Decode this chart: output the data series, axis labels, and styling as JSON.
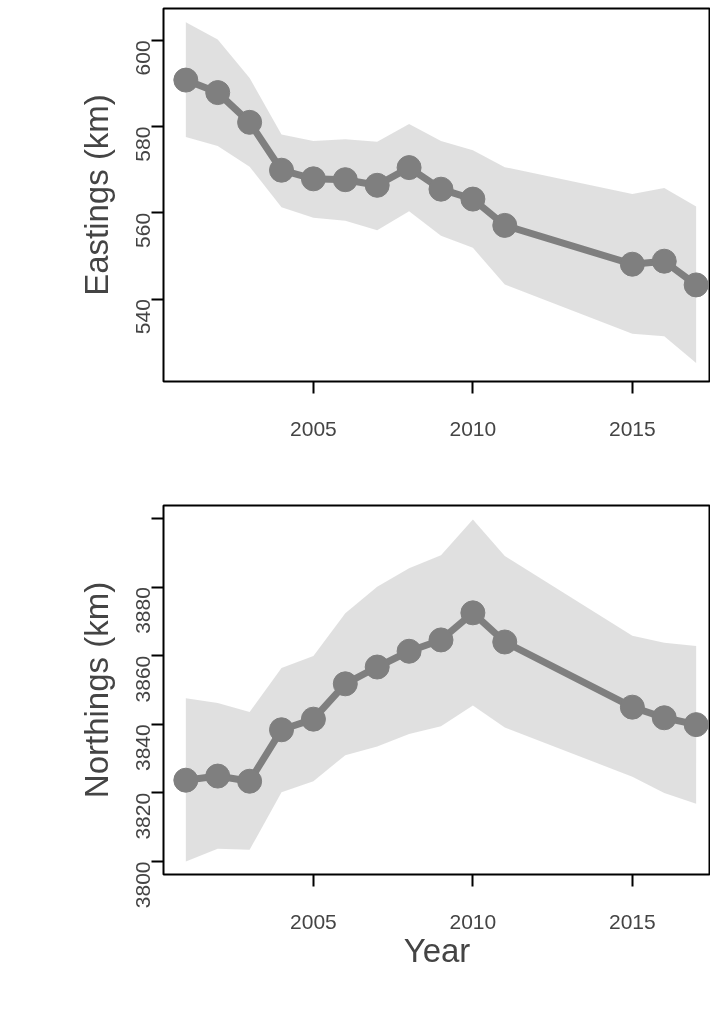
{
  "chart_data": [
    {
      "type": "line",
      "ylabel": "Eastings (km)",
      "x": [
        2001,
        2002,
        2003,
        2004,
        2005,
        2006,
        2007,
        2008,
        2009,
        2010,
        2011,
        2015,
        2016,
        2017
      ],
      "xlim": [
        2000.3,
        2017.45
      ],
      "xticks": [
        2005,
        2010,
        2015
      ],
      "ylim": [
        520.9,
        607.4
      ],
      "yticks": [
        540,
        560,
        580,
        600
      ],
      "grid": false,
      "marker": "circle",
      "line_style": "solid",
      "series": [
        {
          "color": "#7f7f7f",
          "values": [
            590.8,
            587.9,
            581.0,
            569.9,
            567.9,
            567.7,
            566.4,
            570.5,
            565.5,
            563.2,
            557.1,
            548.1,
            548.8,
            543.3
          ],
          "lower": [
            577.6,
            575.5,
            570.7,
            561.3,
            558.9,
            558.2,
            556.0,
            560.4,
            554.7,
            551.9,
            543.4,
            532.0,
            531.4,
            525.2
          ],
          "upper": [
            604.2,
            600.2,
            591.3,
            578.2,
            576.7,
            577.1,
            576.5,
            580.6,
            576.7,
            574.5,
            570.6,
            564.4,
            565.8,
            561.5
          ]
        }
      ]
    },
    {
      "type": "line",
      "xlabel": "Year",
      "ylabel": "Northings (km)",
      "x": [
        2001,
        2002,
        2003,
        2004,
        2005,
        2006,
        2007,
        2008,
        2009,
        2010,
        2011,
        2015,
        2016,
        2017
      ],
      "xlim": [
        2000.3,
        2017.45
      ],
      "xticks": [
        2005,
        2010,
        2015
      ],
      "ylim": [
        3796.2,
        3903.8
      ],
      "yticks": [
        3800,
        3820,
        3840,
        3860,
        3880,
        {
          "value": 3900,
          "label": null
        }
      ],
      "grid": false,
      "marker": "circle",
      "line_style": "solid",
      "series": [
        {
          "color": "#7f7f7f",
          "values": [
            3823.7,
            3824.9,
            3823.4,
            3838.4,
            3841.5,
            3851.8,
            3856.7,
            3861.3,
            3864.6,
            3872.5,
            3864.0,
            3845.0,
            3841.9,
            3839.9
          ],
          "lower": [
            3800.0,
            3803.7,
            3803.4,
            3820.2,
            3823.4,
            3831.0,
            3833.5,
            3837.2,
            3839.4,
            3845.5,
            3839.1,
            3824.7,
            3820.0,
            3816.8
          ],
          "upper": [
            3847.6,
            3846.2,
            3843.6,
            3856.4,
            3859.9,
            3872.4,
            3880.1,
            3885.5,
            3889.3,
            3899.7,
            3889.1,
            3865.8,
            3863.8,
            3862.8
          ]
        }
      ]
    }
  ]
}
